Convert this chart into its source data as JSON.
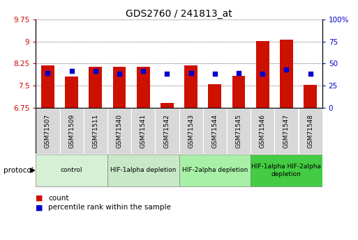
{
  "title": "GDS2760 / 241813_at",
  "samples": [
    "GSM71507",
    "GSM71509",
    "GSM71511",
    "GSM71540",
    "GSM71541",
    "GSM71542",
    "GSM71543",
    "GSM71544",
    "GSM71545",
    "GSM71546",
    "GSM71547",
    "GSM71548"
  ],
  "count_values": [
    8.18,
    7.82,
    8.15,
    8.15,
    8.15,
    6.92,
    8.18,
    7.55,
    7.83,
    9.02,
    9.05,
    7.52
  ],
  "percentile_values": [
    7.92,
    8.0,
    8.0,
    7.9,
    8.0,
    7.9,
    7.92,
    7.9,
    7.92,
    7.9,
    8.05,
    7.9
  ],
  "ylim_left": [
    6.75,
    9.75
  ],
  "ylim_right": [
    0,
    100
  ],
  "yticks_left": [
    6.75,
    7.5,
    8.25,
    9.0,
    9.75
  ],
  "yticks_right": [
    0,
    25,
    50,
    75,
    100
  ],
  "ytick_labels_left": [
    "6.75",
    "7.5",
    "8.25",
    "9",
    "9.75"
  ],
  "ytick_labels_right": [
    "0",
    "25",
    "50",
    "75",
    "100%"
  ],
  "bar_color": "#CC1100",
  "dot_color": "#0000CC",
  "bar_baseline": 6.75,
  "dot_size": 22,
  "group_labels": [
    "control",
    "HIF-1alpha depletion",
    "HIF-2alpha depletion",
    "HIF-1alpha HIF-2alpha\ndepletion"
  ],
  "group_ranges": [
    [
      0,
      2
    ],
    [
      3,
      5
    ],
    [
      6,
      8
    ],
    [
      9,
      11
    ]
  ],
  "group_colors": [
    "#d6f0d6",
    "#c8e8c8",
    "#a8f0a8",
    "#44cc44"
  ],
  "protocol_label": "protocol",
  "legend_count_label": "count",
  "legend_percentile_label": "percentile rank within the sample",
  "sample_box_color": "#d8d8d8",
  "grid_color": "#000000"
}
